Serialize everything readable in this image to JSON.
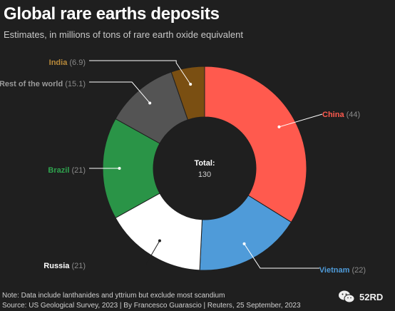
{
  "header": {
    "title": "Global rare earths deposits",
    "subtitle": "Estimates, in millions of tons of rare earth oxide equivalent"
  },
  "chart_data": {
    "type": "pie",
    "donut": true,
    "center_label": "Total:",
    "center_value": "130",
    "slices": [
      {
        "name": "China",
        "value": 44,
        "value_label": "(44)",
        "color": "#ff5a4e"
      },
      {
        "name": "Vietnam",
        "value": 22,
        "value_label": "(22)",
        "color": "#4f9bd9"
      },
      {
        "name": "Russia",
        "value": 21,
        "value_label": "(21)",
        "color": "#ffffff"
      },
      {
        "name": "Brazil",
        "value": 21,
        "value_label": "(21)",
        "color": "#2a9447"
      },
      {
        "name": "Rest of the world",
        "value": 15.1,
        "value_label": "(15.1)",
        "color": "#545454"
      },
      {
        "name": "India",
        "value": 6.9,
        "value_label": "(6.9)",
        "color": "#7a4f12"
      }
    ],
    "label_colors": {
      "China": "#ff5a4e",
      "Vietnam": "#4f9bd9",
      "Russia": "#ffffff",
      "Brazil": "#2fa34e",
      "Rest of the world": "#9a9a9a",
      "India": "#b98a3a"
    },
    "value_label_color": "#8a8a8a",
    "leader_line_color": "#ffffff"
  },
  "footer": {
    "note": "Note: Data include lanthanides and yttrium but exclude most scandium",
    "source": "Source: US Geological Survey, 2023 | By Francesco Guarascio | Reuters, 25 September, 2023"
  },
  "watermark": {
    "text": "52RD",
    "icon": "wechat-icon"
  }
}
